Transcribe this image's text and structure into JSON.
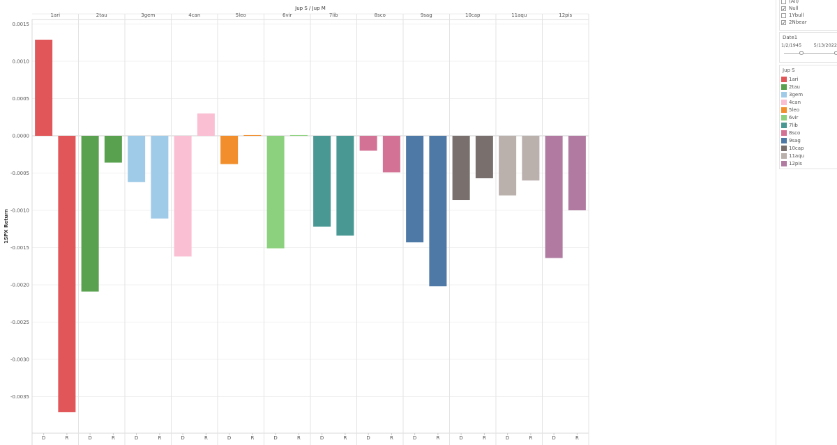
{
  "chart_data": {
    "type": "bar",
    "title": "Jup S  /  Jup M",
    "ylabel": "1SPX Return",
    "xlabel": "",
    "ylim": [
      -0.0039,
      0.0015
    ],
    "yticks": [
      0.0015,
      0.001,
      0.0005,
      0.0,
      -0.0005,
      -0.001,
      -0.0015,
      -0.002,
      -0.0025,
      -0.003,
      -0.0035
    ],
    "ytick_labels": [
      "0.0015",
      "0.0010",
      "0.0005",
      "0.0000",
      "-0.0005",
      "-0.0010",
      "-0.0015",
      "-0.0020",
      "-0.0025",
      "-0.0030",
      "-0.0035"
    ],
    "grid": true,
    "sub_categories": [
      "D",
      "R"
    ],
    "groups": [
      {
        "name": "1ari",
        "color": "#e15759",
        "values": [
          0.00129,
          -0.00371
        ]
      },
      {
        "name": "2tau",
        "color": "#59a14f",
        "values": [
          -0.00209,
          -0.00036
        ]
      },
      {
        "name": "3gem",
        "color": "#a0cbe8",
        "values": [
          -0.00062,
          -0.00111
        ]
      },
      {
        "name": "4can",
        "color": "#fabfd2",
        "values": [
          -0.00162,
          0.0003
        ]
      },
      {
        "name": "5leo",
        "color": "#f28e2b",
        "values": [
          -0.00038,
          1e-05
        ]
      },
      {
        "name": "6vir",
        "color": "#8cd17d",
        "values": [
          -0.00151,
          1e-05
        ]
      },
      {
        "name": "7lib",
        "color": "#499894",
        "values": [
          -0.00122,
          -0.00134
        ]
      },
      {
        "name": "8sco",
        "color": "#d37295",
        "values": [
          -0.0002,
          -0.00049
        ]
      },
      {
        "name": "9sag",
        "color": "#4e79a7",
        "values": [
          -0.00143,
          -0.00202
        ]
      },
      {
        "name": "10cap",
        "color": "#79706e",
        "values": [
          -0.00086,
          -0.00057
        ]
      },
      {
        "name": "11aqu",
        "color": "#bab0ac",
        "values": [
          -0.0008,
          -0.0006
        ]
      },
      {
        "name": "12pis",
        "color": "#b07aa1",
        "values": [
          -0.00164,
          -0.001
        ]
      }
    ]
  },
  "filter_panel": {
    "items": [
      {
        "label": "(All)",
        "checked": false,
        "mark": ""
      },
      {
        "label": "Null",
        "checked": true,
        "mark": "✓"
      },
      {
        "label": "1Ybull",
        "checked": false,
        "mark": ""
      },
      {
        "label": "2Nbear",
        "checked": true,
        "mark": "✓"
      }
    ]
  },
  "date_panel": {
    "title": "Date1",
    "start": "1/2/1945",
    "end": "5/13/2022"
  },
  "legend_panel": {
    "title": "Jup S",
    "items": [
      {
        "label": "1ari",
        "color": "#e15759"
      },
      {
        "label": "2tau",
        "color": "#59a14f"
      },
      {
        "label": "3gem",
        "color": "#a0cbe8"
      },
      {
        "label": "4can",
        "color": "#fabfd2"
      },
      {
        "label": "5leo",
        "color": "#f28e2b"
      },
      {
        "label": "6vir",
        "color": "#8cd17d"
      },
      {
        "label": "7lib",
        "color": "#499894"
      },
      {
        "label": "8sco",
        "color": "#d37295"
      },
      {
        "label": "9sag",
        "color": "#4e79a7"
      },
      {
        "label": "10cap",
        "color": "#79706e"
      },
      {
        "label": "11aqu",
        "color": "#bab0ac"
      },
      {
        "label": "12pis",
        "color": "#b07aa1"
      }
    ]
  }
}
